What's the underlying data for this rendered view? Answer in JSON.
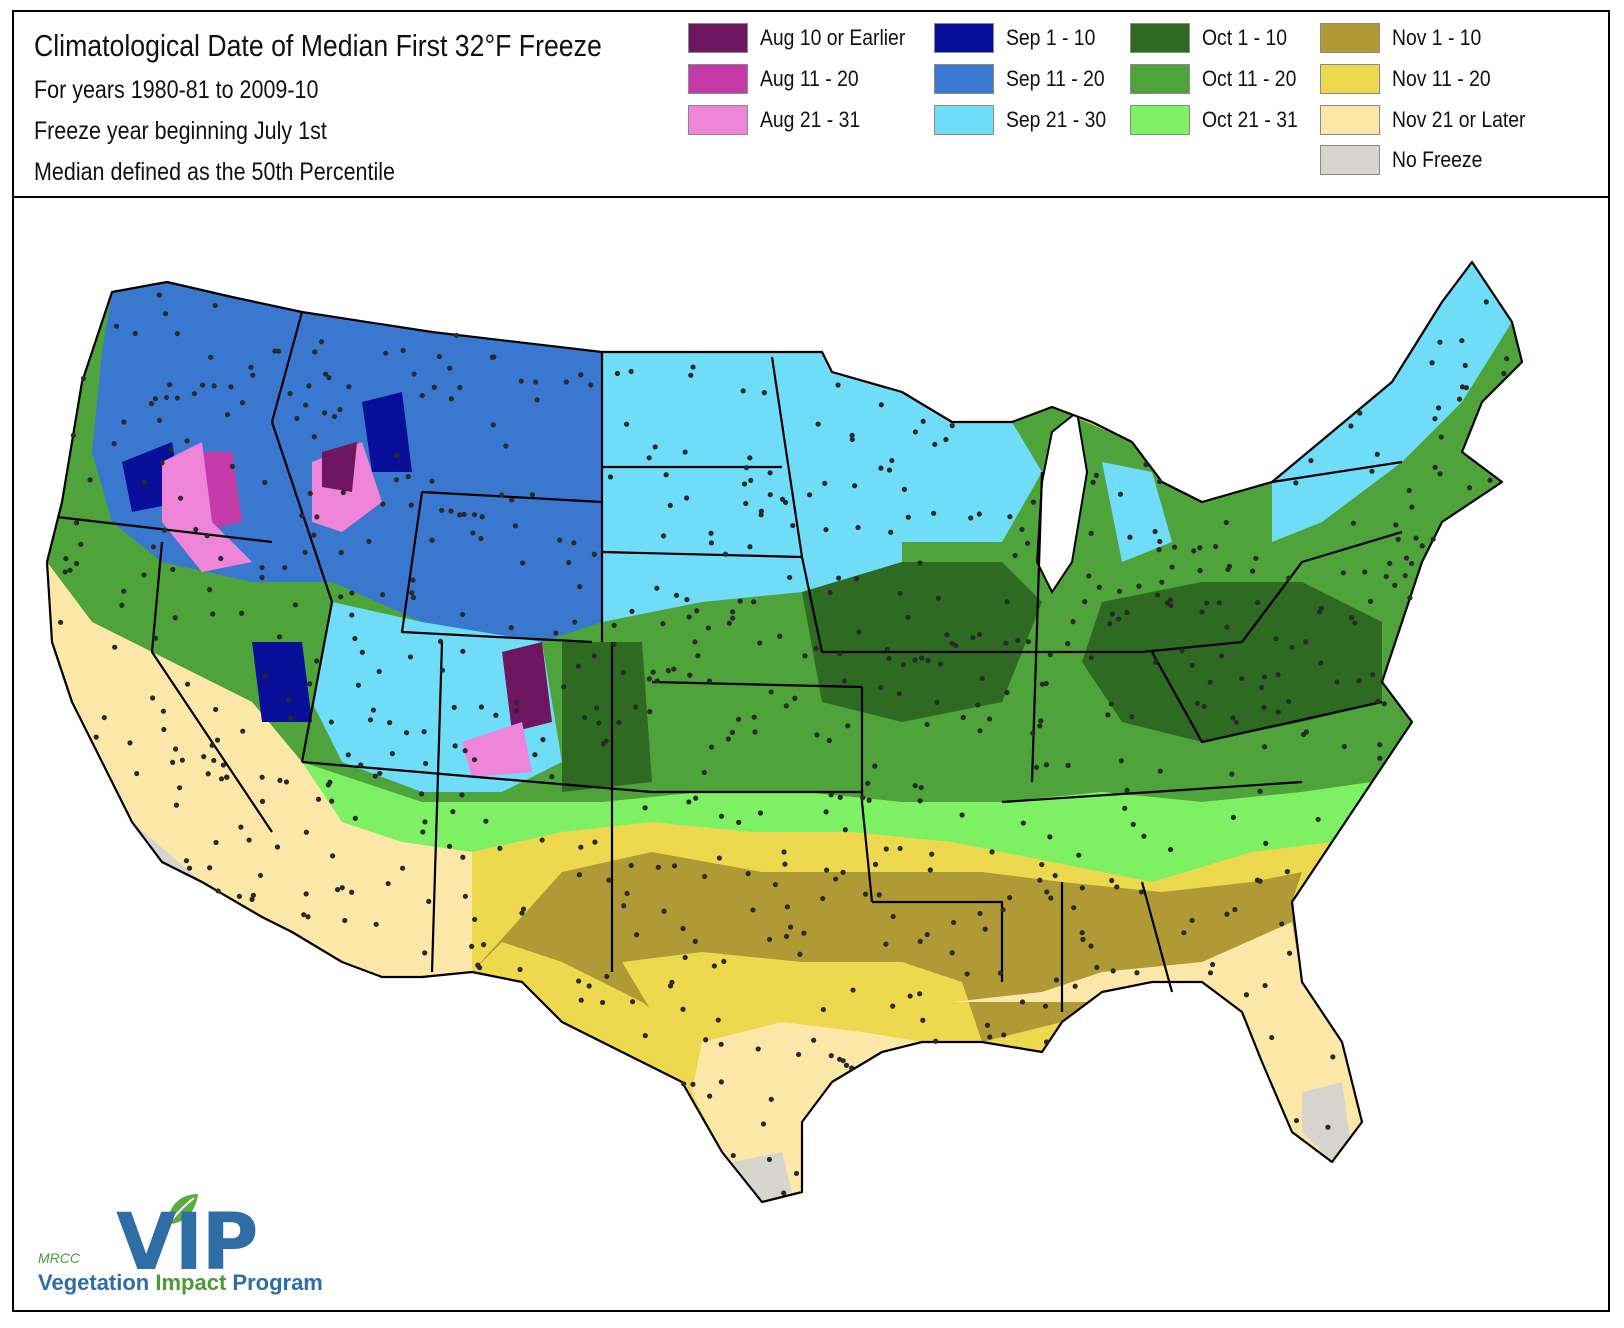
{
  "header": {
    "title": "Climatological Date of Median First 32°F Freeze",
    "lines": [
      "For years 1980-81 to 2009-10",
      "Freeze year beginning July 1st",
      "Median defined as the 50th Percentile"
    ]
  },
  "legend": [
    {
      "label": "Aug 10 or Earlier",
      "color": "#6e1760"
    },
    {
      "label": "Aug 11 - 20",
      "color": "#c33aa8"
    },
    {
      "label": "Aug 21 - 31",
      "color": "#ee85d9"
    },
    {
      "label": "Sep 1 - 10",
      "color": "#0a0f9a"
    },
    {
      "label": "Sep 11 - 20",
      "color": "#3a78cf"
    },
    {
      "label": "Sep 21 - 30",
      "color": "#6fdcf8"
    },
    {
      "label": "Oct 1 - 10",
      "color": "#2f6a22"
    },
    {
      "label": "Oct 11 - 20",
      "color": "#4ea33b"
    },
    {
      "label": "Oct 21 - 31",
      "color": "#7ef064"
    },
    {
      "label": "Nov 1 - 10",
      "color": "#b09a35"
    },
    {
      "label": "Nov 11 - 20",
      "color": "#ecd94e"
    },
    {
      "label": "Nov 21 or Later",
      "color": "#fbe8a8"
    },
    {
      "label": "No Freeze",
      "color": "#d6d6cf"
    }
  ],
  "logo": {
    "mark": "VIP",
    "org": "MRCC",
    "tagline_part1": "Vegetation ",
    "tagline_part2": "Impact",
    "tagline_part3": " Program",
    "leaf_color": "#5cab3f",
    "text_color": "#2e6da6"
  }
}
